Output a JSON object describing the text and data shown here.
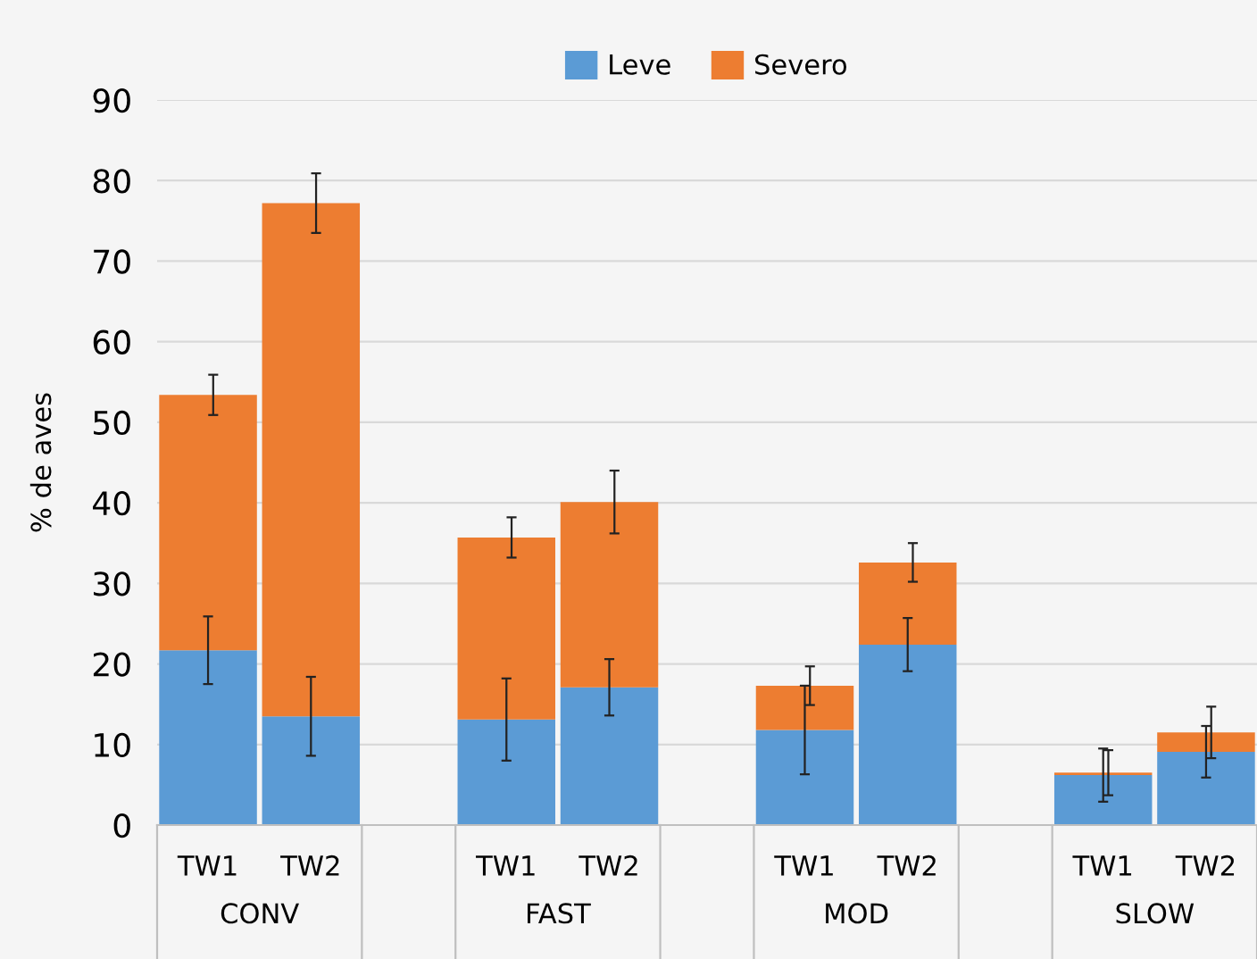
{
  "chart_data": {
    "type": "bar",
    "stacked": true,
    "ylabel": "% de aves",
    "categories": [
      "TW1",
      "TW2",
      "TW1",
      "TW2",
      "TW1",
      "TW2",
      "TW1",
      "TW2"
    ],
    "annotations": [
      "CONV",
      "FAST",
      "MOD",
      "SLOW"
    ],
    "series": [
      {
        "name": "Leve",
        "color": "#5b9bd5",
        "values": [
          21.7,
          13.5,
          13.1,
          17.1,
          11.8,
          22.4,
          6.2,
          9.1
        ],
        "errors": [
          4.2,
          4.9,
          5.1,
          3.5,
          5.5,
          3.3,
          3.3,
          3.2
        ]
      },
      {
        "name": "Severo",
        "color": "#ed7d31",
        "values": [
          31.7,
          63.7,
          22.6,
          23,
          5.5,
          10.2,
          0.3,
          2.4
        ],
        "errors": [
          2.5,
          3.7,
          2.5,
          3.9,
          2.4,
          2.4,
          2.8,
          3.2
        ]
      }
    ],
    "ylim": [
      0,
      90
    ],
    "yticks": [
      0,
      10,
      20,
      30,
      40,
      50,
      60,
      70,
      80,
      90
    ],
    "grid": "y",
    "legend": "top"
  }
}
